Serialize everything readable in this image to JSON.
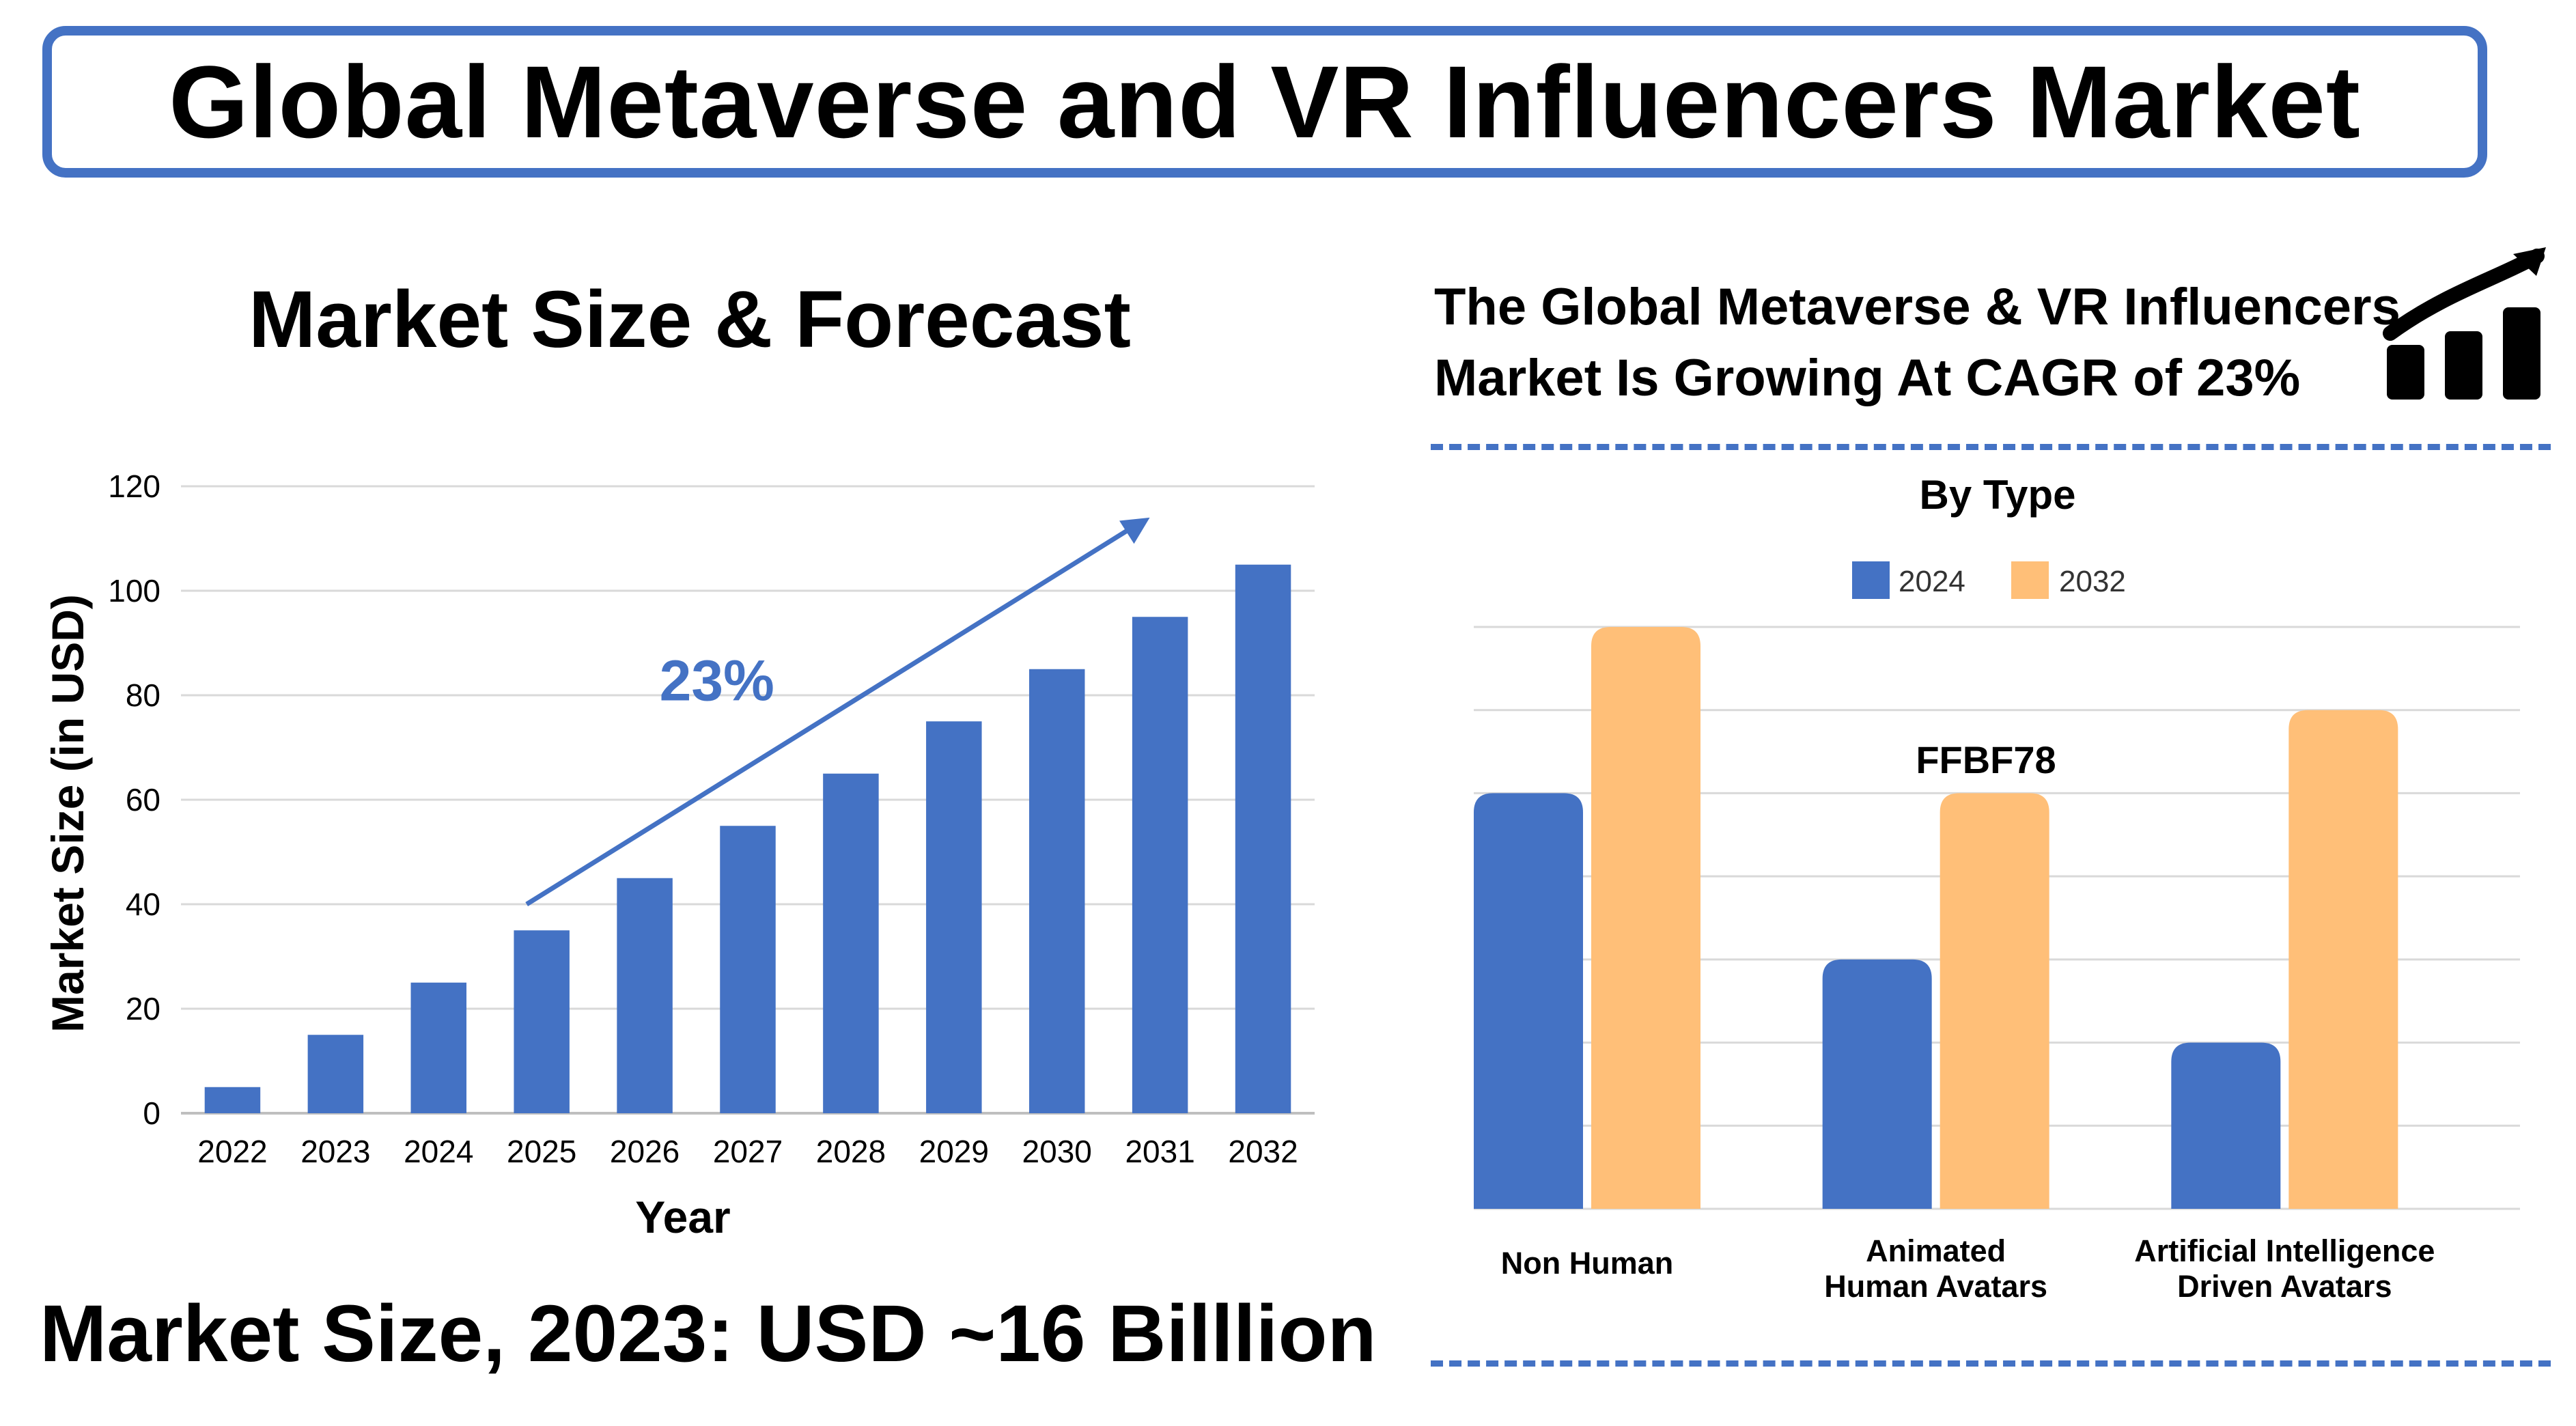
{
  "header": {
    "title": "Global Metaverse and VR Influencers  Market"
  },
  "left": {
    "title": "Market Size & Forecast",
    "bottom_text": "Market Size, 2023: USD ~16 Billlion",
    "cagr_annotation": "23%"
  },
  "right": {
    "cagr_text_line1": "The Global Metaverse & VR Influencers",
    "cagr_text_line2": "Market Is Growing At CAGR of 23%",
    "annotation": "FFBF78"
  },
  "colors": {
    "blue": "#4472C4",
    "orange": "#FFBF78"
  },
  "icons": {
    "growth": "growth-chart-icon"
  },
  "chart_data": [
    {
      "type": "bar",
      "title": "",
      "xlabel": "Year",
      "ylabel": "Market Size (in USD)",
      "ylim": [
        0,
        120
      ],
      "yticks": [
        0,
        20,
        40,
        60,
        80,
        100,
        120
      ],
      "categories": [
        "2022",
        "2023",
        "2024",
        "2025",
        "2026",
        "2027",
        "2028",
        "2029",
        "2030",
        "2031",
        "2032"
      ],
      "values": [
        5,
        15,
        25,
        35,
        45,
        55,
        65,
        75,
        85,
        95,
        105
      ],
      "grid": true,
      "color": "#4472C4"
    },
    {
      "type": "bar",
      "title": "By Type",
      "categories": [
        "Non Human",
        "Animated Human Avatars",
        "Artificial Intelligence Driven Avatars"
      ],
      "category_lines": [
        [
          "Non Human"
        ],
        [
          "Animated",
          "Human Avatars"
        ],
        [
          "Artificial Intelligence",
          "Driven Avatars"
        ]
      ],
      "ylim": [
        0,
        7
      ],
      "series": [
        {
          "name": "2024",
          "color": "#4472C4",
          "values": [
            5,
            3,
            2
          ]
        },
        {
          "name": "2032",
          "color": "#FFBF78",
          "values": [
            7,
            5,
            6
          ]
        }
      ],
      "legend": "top-center",
      "grid": true
    }
  ]
}
